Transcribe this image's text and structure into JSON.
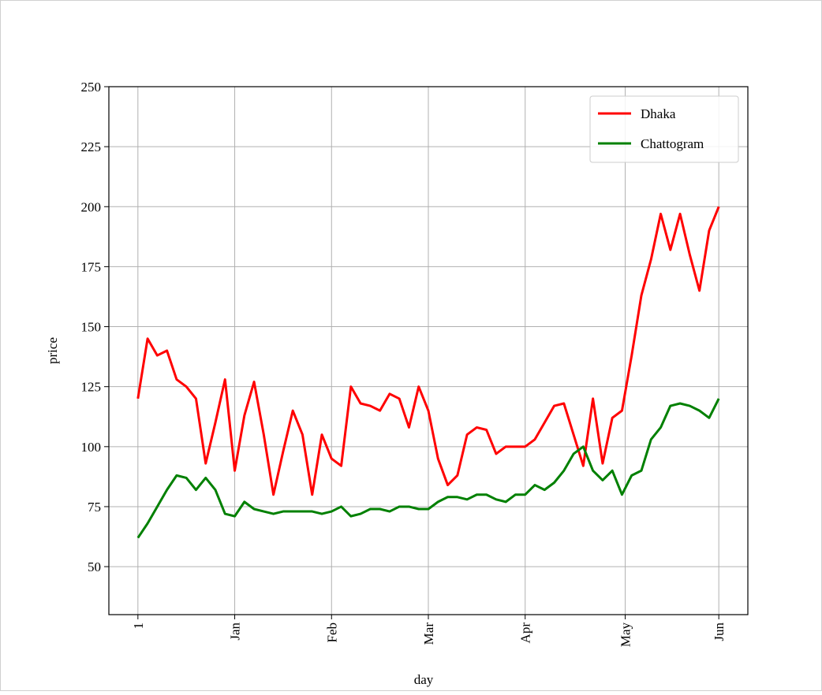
{
  "chart_data": {
    "type": "line",
    "xlabel": "day",
    "ylabel": "price",
    "x": [
      0,
      3,
      6,
      9,
      12,
      15,
      18,
      21,
      24,
      27,
      30,
      33,
      36,
      39,
      42,
      45,
      48,
      51,
      54,
      57,
      60,
      63,
      66,
      69,
      72,
      75,
      78,
      81,
      84,
      87,
      90,
      93,
      96,
      99,
      102,
      105,
      108,
      111,
      114,
      117,
      120,
      123,
      126,
      129,
      132,
      135,
      138,
      141,
      144,
      147,
      150,
      153,
      156,
      159,
      162,
      165,
      168,
      171,
      174,
      177,
      180
    ],
    "series": [
      {
        "name": "Dhaka",
        "color": "#ff0000",
        "values": [
          120,
          145,
          138,
          140,
          128,
          125,
          120,
          93,
          110,
          128,
          90,
          113,
          127,
          105,
          80,
          98,
          115,
          105,
          80,
          105,
          95,
          92,
          125,
          118,
          117,
          115,
          122,
          120,
          108,
          125,
          115,
          95,
          84,
          88,
          105,
          108,
          107,
          97,
          100,
          100,
          100,
          103,
          110,
          117,
          118,
          105,
          92,
          120,
          93,
          112,
          115,
          138,
          163,
          178,
          197,
          182,
          197,
          180,
          165,
          190,
          200
        ]
      },
      {
        "name": "Chattogram",
        "color": "#008000",
        "values": [
          62,
          68,
          75,
          82,
          88,
          87,
          82,
          87,
          82,
          72,
          71,
          77,
          74,
          73,
          72,
          73,
          73,
          73,
          73,
          72,
          73,
          75,
          71,
          72,
          74,
          74,
          73,
          75,
          75,
          74,
          74,
          77,
          79,
          79,
          78,
          80,
          80,
          78,
          77,
          80,
          80,
          84,
          82,
          85,
          90,
          97,
          100,
          90,
          86,
          90,
          80,
          88,
          90,
          103,
          108,
          117,
          118,
          117,
          115,
          112,
          120
        ]
      }
    ],
    "xlim": [
      -9,
      189
    ],
    "xticks": [
      {
        "value": 0,
        "label": "1"
      },
      {
        "value": 30,
        "label": "Jan"
      },
      {
        "value": 60,
        "label": "Feb"
      },
      {
        "value": 90,
        "label": "Mar"
      },
      {
        "value": 120,
        "label": "Apr"
      },
      {
        "value": 151,
        "label": "May"
      },
      {
        "value": 180,
        "label": "Jun"
      }
    ],
    "ylim": [
      30,
      250
    ],
    "yticks": [
      50,
      75,
      100,
      125,
      150,
      175,
      200,
      225,
      250
    ],
    "grid": true,
    "legend": "upper right"
  }
}
